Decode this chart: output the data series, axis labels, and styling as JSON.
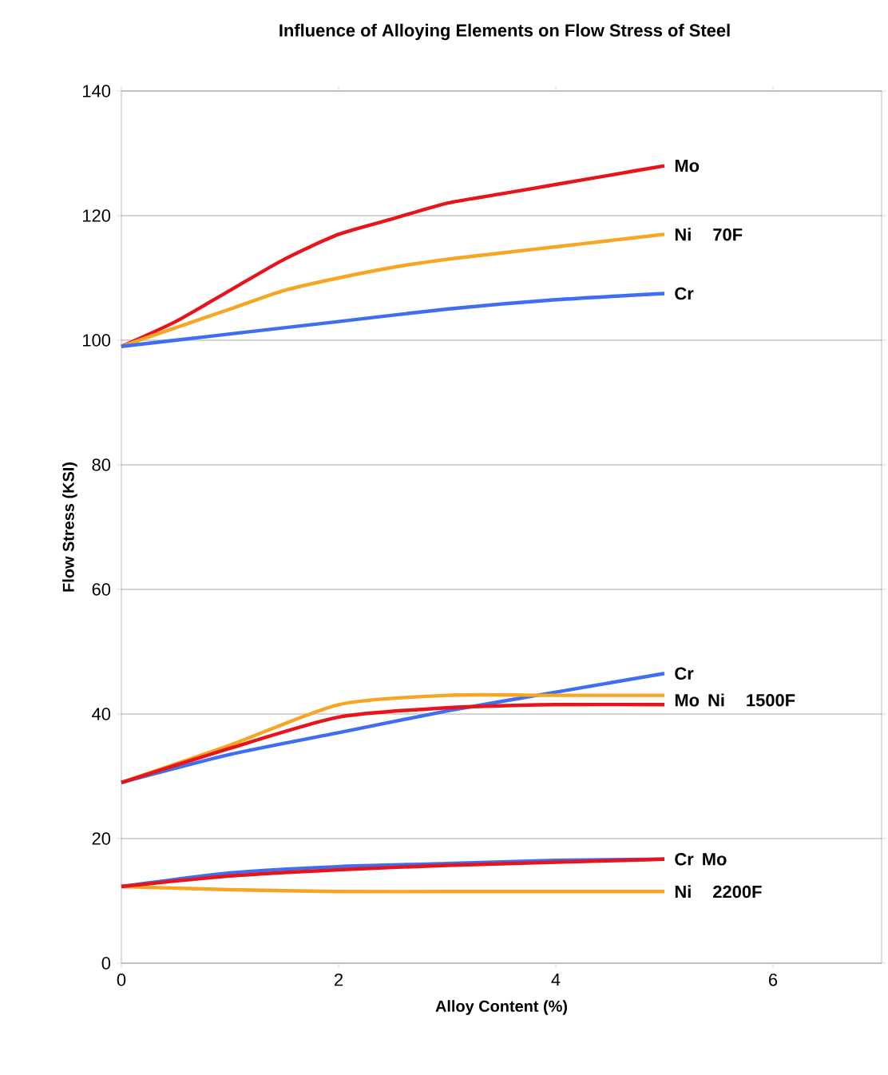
{
  "chart_data": {
    "type": "line",
    "title": "Influence of Alloying Elements on Flow Stress of Steel",
    "xlabel": "Alloy Content (%)",
    "ylabel": "Flow Stress (KSI)",
    "xlim": [
      0,
      7
    ],
    "xticks": [
      0,
      2,
      4,
      6
    ],
    "ylim": [
      0,
      140
    ],
    "yticks": [
      0,
      20,
      40,
      60,
      80,
      100,
      120,
      140
    ],
    "grid": "y",
    "marker": "none",
    "line_style": "solid",
    "series": [
      {
        "name": "Mo",
        "color": "#e8141c",
        "x": [
          0,
          0.5,
          1,
          1.5,
          2,
          2.5,
          3,
          3.5,
          4,
          4.5,
          5
        ],
        "values": [
          99,
          103,
          108,
          113,
          117,
          119.5,
          122,
          123.5,
          125,
          126.5,
          128
        ]
      },
      {
        "name": "Ni",
        "color": "#f5a623",
        "x": [
          0,
          0.5,
          1,
          1.5,
          2,
          2.5,
          3,
          3.5,
          4,
          4.5,
          5
        ],
        "values": [
          99,
          102,
          105,
          108,
          110,
          111.7,
          113,
          114,
          115,
          116,
          117
        ]
      },
      {
        "name": "Cr",
        "color": "#3f6ff0",
        "x": [
          0,
          1,
          2,
          3,
          4,
          5
        ],
        "values": [
          99,
          101,
          103,
          105,
          106.5,
          107.5
        ]
      },
      {
        "name": "Cr",
        "color": "#3f6ff0",
        "x": [
          0,
          1,
          2,
          3,
          4,
          5
        ],
        "values": [
          29,
          33.5,
          37,
          40.5,
          43.5,
          46.5
        ]
      },
      {
        "name": "Ni",
        "color": "#f5a623",
        "x": [
          0,
          1,
          2,
          3,
          4,
          5
        ],
        "values": [
          29,
          35,
          41.5,
          43,
          43,
          43
        ]
      },
      {
        "name": "Mo",
        "color": "#e8141c",
        "x": [
          0,
          1,
          2,
          3,
          4,
          5
        ],
        "values": [
          29,
          34.5,
          39.5,
          41,
          41.5,
          41.5
        ]
      },
      {
        "name": "Cr",
        "color": "#3f6ff0",
        "x": [
          0,
          1,
          2,
          3,
          4,
          5
        ],
        "values": [
          12.3,
          14.5,
          15.5,
          16,
          16.5,
          16.7
        ]
      },
      {
        "name": "Ni",
        "color": "#f5a623",
        "x": [
          0,
          1,
          2,
          3,
          4,
          5
        ],
        "values": [
          12.3,
          11.8,
          11.5,
          11.5,
          11.5,
          11.5
        ]
      },
      {
        "name": "Mo",
        "color": "#e8141c",
        "x": [
          0,
          1,
          2,
          3,
          4,
          5
        ],
        "values": [
          12.3,
          14,
          15,
          15.7,
          16.2,
          16.7
        ]
      }
    ],
    "annotations": [
      "70F",
      "1500F",
      "2200F"
    ]
  }
}
